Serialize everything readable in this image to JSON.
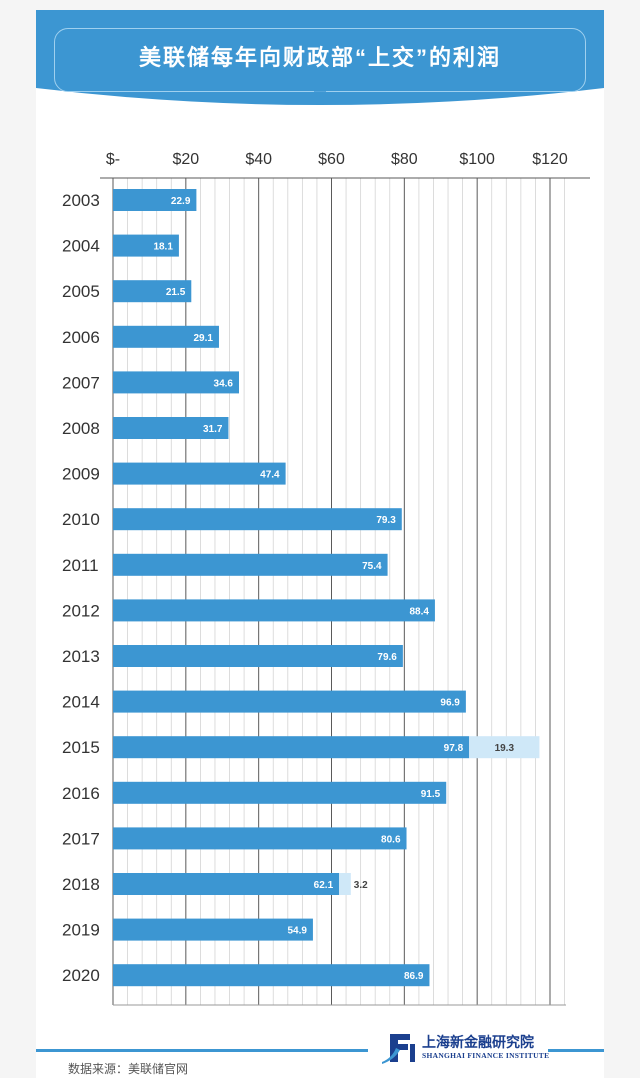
{
  "header": {
    "title": "美联储每年向财政部“上交”的利润"
  },
  "footer": {
    "source": "数据来源：美联储官网",
    "logo_cn": "上海新金融研究院",
    "logo_en": "SHANGHAI FINANCE INSTITUTE"
  },
  "colors": {
    "header": "#3c96d2",
    "bar": "#3c96d2",
    "bar_light": "#cfe8f8",
    "grid": "#cfcfcf"
  },
  "chart_data": {
    "type": "bar",
    "orientation": "horizontal",
    "stacked": true,
    "title": "美联储每年向财政部“上交”的利润",
    "xlim": [
      0,
      120
    ],
    "x_ticks": [
      0,
      20,
      40,
      60,
      80,
      100,
      120
    ],
    "x_tick_labels": [
      "$-",
      "$20",
      "$40",
      "$60",
      "$80",
      "$100",
      "$120"
    ],
    "x_axis_position": "top",
    "grid": true,
    "categories": [
      "2003",
      "2004",
      "2005",
      "2006",
      "2007",
      "2008",
      "2009",
      "2010",
      "2011",
      "2012",
      "2013",
      "2014",
      "2015",
      "2016",
      "2017",
      "2018",
      "2019",
      "2020"
    ],
    "series": [
      {
        "color": "#3c96d2",
        "values": [
          22.9,
          18.1,
          21.5,
          29.1,
          34.6,
          31.7,
          47.4,
          79.3,
          75.4,
          88.4,
          79.6,
          96.9,
          97.8,
          91.5,
          80.6,
          62.1,
          54.9,
          86.9
        ]
      },
      {
        "color": "#cfe8f8",
        "values": [
          null,
          null,
          null,
          null,
          null,
          null,
          null,
          null,
          null,
          null,
          null,
          null,
          19.3,
          null,
          null,
          3.2,
          null,
          null
        ]
      }
    ]
  }
}
